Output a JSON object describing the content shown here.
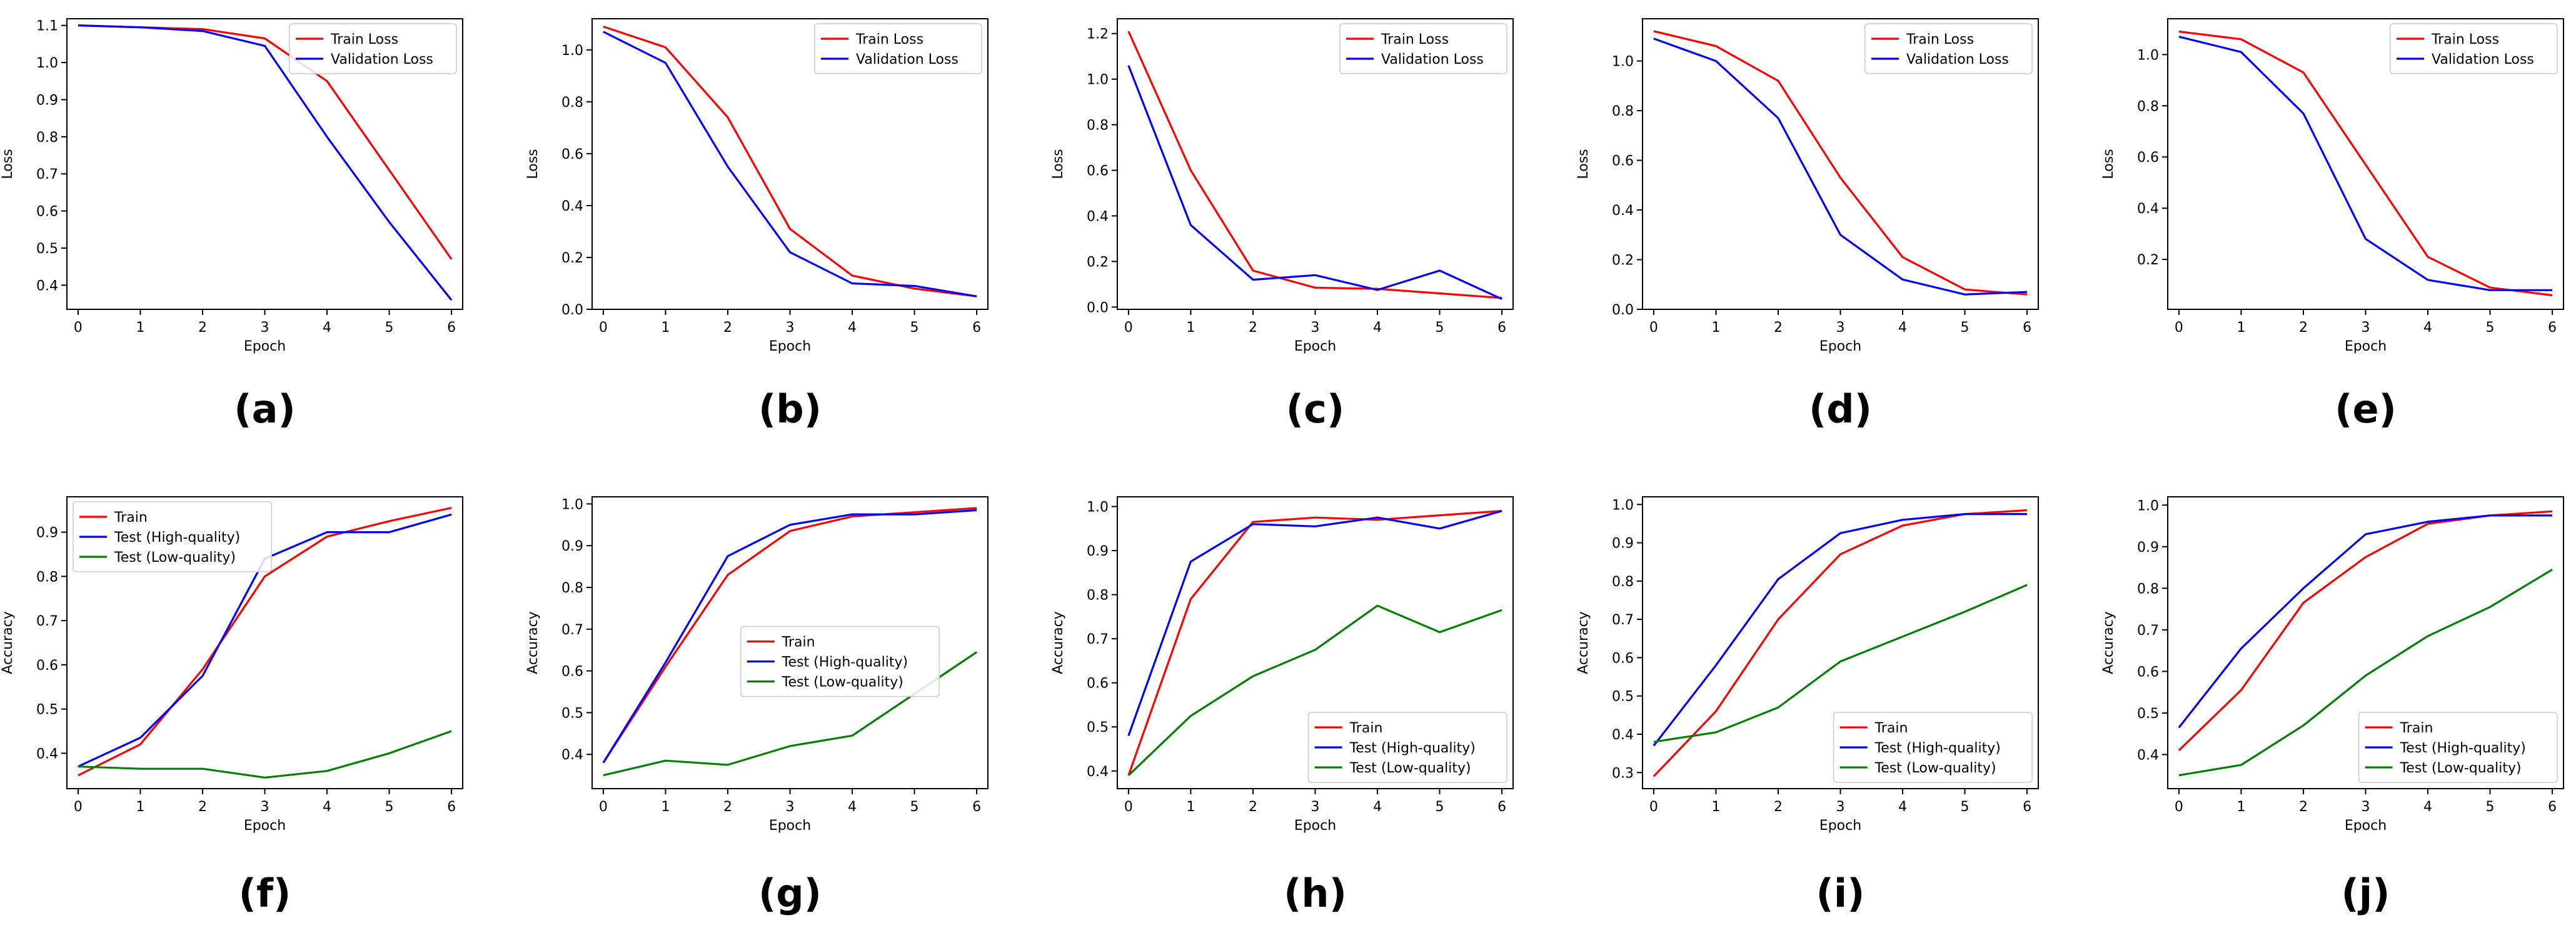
{
  "colors": {
    "train": "#ff0000",
    "validation": "#0000ff",
    "low_quality": "#008000",
    "axis": "#000000"
  },
  "chart_data": [
    {
      "id": "a",
      "type": "line",
      "caption": "(a)",
      "xlabel": "Epoch",
      "ylabel": "Loss",
      "x": [
        0,
        1,
        2,
        3,
        4,
        5,
        6
      ],
      "xlim": [
        -0.18,
        6.18
      ],
      "ylim": [
        0.335,
        1.118
      ],
      "yticks": [
        0.4,
        0.5,
        0.6,
        0.7,
        0.8,
        0.9,
        1.0,
        1.1
      ],
      "ytick_labels": [
        "0.4",
        "0.5",
        "0.6",
        "0.7",
        "0.8",
        "0.9",
        "1.0",
        "1.1"
      ],
      "legend_position": "top-right",
      "series": [
        {
          "name": "Train Loss",
          "color": "#ff0000",
          "values": [
            1.1,
            1.095,
            1.09,
            1.065,
            0.95,
            0.71,
            0.47
          ]
        },
        {
          "name": "Validation Loss",
          "color": "#0000ff",
          "values": [
            1.1,
            1.095,
            1.085,
            1.045,
            0.8,
            0.57,
            0.36
          ]
        }
      ]
    },
    {
      "id": "b",
      "type": "line",
      "caption": "(b)",
      "xlabel": "Epoch",
      "ylabel": "Loss",
      "x": [
        0,
        1,
        2,
        3,
        4,
        5,
        6
      ],
      "xlim": [
        -0.18,
        6.18
      ],
      "ylim": [
        0.0,
        1.12
      ],
      "yticks": [
        0.0,
        0.2,
        0.4,
        0.6,
        0.8,
        1.0
      ],
      "ytick_labels": [
        "0.0",
        "0.2",
        "0.4",
        "0.6",
        "0.8",
        "1.0"
      ],
      "legend_position": "top-right",
      "series": [
        {
          "name": "Train Loss",
          "color": "#ff0000",
          "values": [
            1.09,
            1.01,
            0.74,
            0.31,
            0.13,
            0.08,
            0.05
          ]
        },
        {
          "name": "Validation Loss",
          "color": "#0000ff",
          "values": [
            1.07,
            0.95,
            0.55,
            0.22,
            0.1,
            0.09,
            0.05
          ]
        }
      ]
    },
    {
      "id": "c",
      "type": "line",
      "caption": "(c)",
      "xlabel": "Epoch",
      "ylabel": "Loss",
      "x": [
        0,
        1,
        2,
        3,
        4,
        5,
        6
      ],
      "xlim": [
        -0.18,
        6.18
      ],
      "ylim": [
        -0.01,
        1.265
      ],
      "yticks": [
        0.0,
        0.2,
        0.4,
        0.6,
        0.8,
        1.0,
        1.2
      ],
      "ytick_labels": [
        "0.0",
        "0.2",
        "0.4",
        "0.6",
        "0.8",
        "1.0",
        "1.2"
      ],
      "legend_position": "top-right",
      "series": [
        {
          "name": "Train Loss",
          "color": "#ff0000",
          "values": [
            1.21,
            0.6,
            0.16,
            0.085,
            0.08,
            0.06,
            0.04
          ]
        },
        {
          "name": "Validation Loss",
          "color": "#0000ff",
          "values": [
            1.06,
            0.36,
            0.12,
            0.14,
            0.075,
            0.16,
            0.035
          ]
        }
      ]
    },
    {
      "id": "d",
      "type": "line",
      "caption": "(d)",
      "xlabel": "Epoch",
      "ylabel": "Loss",
      "x": [
        0,
        1,
        2,
        3,
        4,
        5,
        6
      ],
      "xlim": [
        -0.18,
        6.18
      ],
      "ylim": [
        0.0,
        1.17
      ],
      "yticks": [
        0.0,
        0.2,
        0.4,
        0.6,
        0.8,
        1.0
      ],
      "ytick_labels": [
        "0.0",
        "0.2",
        "0.4",
        "0.6",
        "0.8",
        "1.0"
      ],
      "legend_position": "top-right",
      "series": [
        {
          "name": "Train Loss",
          "color": "#ff0000",
          "values": [
            1.12,
            1.06,
            0.92,
            0.53,
            0.21,
            0.08,
            0.06
          ]
        },
        {
          "name": "Validation Loss",
          "color": "#0000ff",
          "values": [
            1.09,
            1.0,
            0.77,
            0.3,
            0.12,
            0.06,
            0.07
          ]
        }
      ]
    },
    {
      "id": "e",
      "type": "line",
      "caption": "(e)",
      "xlabel": "Epoch",
      "ylabel": "Loss",
      "x": [
        0,
        1,
        2,
        3,
        4,
        5,
        6
      ],
      "xlim": [
        -0.18,
        6.18
      ],
      "ylim": [
        0.005,
        1.14
      ],
      "yticks": [
        0.2,
        0.4,
        0.6,
        0.8,
        1.0
      ],
      "ytick_labels": [
        "0.2",
        "0.4",
        "0.6",
        "0.8",
        "1.0"
      ],
      "legend_position": "top-right",
      "series": [
        {
          "name": "Train Loss",
          "color": "#ff0000",
          "values": [
            1.09,
            1.06,
            0.93,
            0.57,
            0.21,
            0.09,
            0.06
          ]
        },
        {
          "name": "Validation Loss",
          "color": "#0000ff",
          "values": [
            1.07,
            1.01,
            0.77,
            0.28,
            0.12,
            0.08,
            0.08
          ]
        }
      ]
    },
    {
      "id": "f",
      "type": "line",
      "caption": "(f)",
      "xlabel": "Epoch",
      "ylabel": "Accuracy",
      "x": [
        0,
        1,
        2,
        3,
        4,
        5,
        6
      ],
      "xlim": [
        -0.18,
        6.18
      ],
      "ylim": [
        0.32,
        0.98
      ],
      "yticks": [
        0.4,
        0.5,
        0.6,
        0.7,
        0.8,
        0.9
      ],
      "ytick_labels": [
        "0.4",
        "0.5",
        "0.6",
        "0.7",
        "0.8",
        "0.9"
      ],
      "legend_position": "top-left",
      "series": [
        {
          "name": "Train",
          "color": "#ff0000",
          "values": [
            0.35,
            0.42,
            0.59,
            0.8,
            0.89,
            0.925,
            0.955
          ]
        },
        {
          "name": "Test (High-quality)",
          "color": "#0000ff",
          "values": [
            0.37,
            0.435,
            0.575,
            0.84,
            0.9,
            0.9,
            0.94
          ]
        },
        {
          "name": "Test (Low-quality)",
          "color": "#008000",
          "values": [
            0.37,
            0.365,
            0.365,
            0.345,
            0.36,
            0.4,
            0.45
          ]
        }
      ]
    },
    {
      "id": "g",
      "type": "line",
      "caption": "(g)",
      "xlabel": "Epoch",
      "ylabel": "Accuracy",
      "x": [
        0,
        1,
        2,
        3,
        4,
        5,
        6
      ],
      "xlim": [
        -0.18,
        6.18
      ],
      "ylim": [
        0.318,
        1.017
      ],
      "yticks": [
        0.4,
        0.5,
        0.6,
        0.7,
        0.8,
        0.9,
        1.0
      ],
      "ytick_labels": [
        "0.4",
        "0.5",
        "0.6",
        "0.7",
        "0.8",
        "0.9",
        "1.0"
      ],
      "legend_position": "center",
      "series": [
        {
          "name": "Train",
          "color": "#ff0000",
          "values": [
            0.38,
            0.61,
            0.83,
            0.935,
            0.97,
            0.98,
            0.99
          ]
        },
        {
          "name": "Test (High-quality)",
          "color": "#0000ff",
          "values": [
            0.38,
            0.62,
            0.875,
            0.95,
            0.975,
            0.975,
            0.985
          ]
        },
        {
          "name": "Test (Low-quality)",
          "color": "#008000",
          "values": [
            0.35,
            0.385,
            0.375,
            0.42,
            0.445,
            0.545,
            0.645
          ]
        }
      ]
    },
    {
      "id": "h",
      "type": "line",
      "caption": "(h)",
      "xlabel": "Epoch",
      "ylabel": "Accuracy",
      "x": [
        0,
        1,
        2,
        3,
        4,
        5,
        6
      ],
      "xlim": [
        -0.18,
        6.18
      ],
      "ylim": [
        0.36,
        1.022
      ],
      "yticks": [
        0.4,
        0.5,
        0.6,
        0.7,
        0.8,
        0.9,
        1.0
      ],
      "ytick_labels": [
        "0.4",
        "0.5",
        "0.6",
        "0.7",
        "0.8",
        "0.9",
        "1.0"
      ],
      "legend_position": "bottom-right",
      "series": [
        {
          "name": "Train",
          "color": "#ff0000",
          "values": [
            0.39,
            0.79,
            0.965,
            0.975,
            0.97,
            0.98,
            0.99
          ]
        },
        {
          "name": "Test (High-quality)",
          "color": "#0000ff",
          "values": [
            0.48,
            0.875,
            0.96,
            0.955,
            0.975,
            0.95,
            0.99
          ]
        },
        {
          "name": "Test (Low-quality)",
          "color": "#008000",
          "values": [
            0.39,
            0.525,
            0.615,
            0.675,
            0.775,
            0.715,
            0.765
          ]
        }
      ]
    },
    {
      "id": "i",
      "type": "line",
      "caption": "(i)",
      "xlabel": "Epoch",
      "ylabel": "Accuracy",
      "x": [
        0,
        1,
        2,
        3,
        4,
        5,
        6
      ],
      "xlim": [
        -0.18,
        6.18
      ],
      "ylim": [
        0.258,
        1.02
      ],
      "yticks": [
        0.3,
        0.4,
        0.5,
        0.6,
        0.7,
        0.8,
        0.9,
        1.0
      ],
      "ytick_labels": [
        "0.3",
        "0.4",
        "0.5",
        "0.6",
        "0.7",
        "0.8",
        "0.9",
        "1.0"
      ],
      "legend_position": "bottom-right",
      "series": [
        {
          "name": "Train",
          "color": "#ff0000",
          "values": [
            0.29,
            0.46,
            0.7,
            0.87,
            0.945,
            0.975,
            0.985
          ]
        },
        {
          "name": "Test (High-quality)",
          "color": "#0000ff",
          "values": [
            0.37,
            0.58,
            0.805,
            0.925,
            0.96,
            0.975,
            0.975
          ]
        },
        {
          "name": "Test (Low-quality)",
          "color": "#008000",
          "values": [
            0.38,
            0.405,
            0.47,
            0.59,
            0.655,
            0.72,
            0.79
          ]
        }
      ]
    },
    {
      "id": "j",
      "type": "line",
      "caption": "(j)",
      "xlabel": "Epoch",
      "ylabel": "Accuracy",
      "x": [
        0,
        1,
        2,
        3,
        4,
        5,
        6
      ],
      "xlim": [
        -0.18,
        6.18
      ],
      "ylim": [
        0.318,
        1.02
      ],
      "yticks": [
        0.4,
        0.5,
        0.6,
        0.7,
        0.8,
        0.9,
        1.0
      ],
      "ytick_labels": [
        "0.4",
        "0.5",
        "0.6",
        "0.7",
        "0.8",
        "0.9",
        "1.0"
      ],
      "legend_position": "bottom-right",
      "series": [
        {
          "name": "Train",
          "color": "#ff0000",
          "values": [
            0.41,
            0.555,
            0.765,
            0.875,
            0.955,
            0.975,
            0.985
          ]
        },
        {
          "name": "Test (High-quality)",
          "color": "#0000ff",
          "values": [
            0.465,
            0.655,
            0.8,
            0.93,
            0.96,
            0.975,
            0.975
          ]
        },
        {
          "name": "Test (Low-quality)",
          "color": "#008000",
          "values": [
            0.35,
            0.375,
            0.47,
            0.59,
            0.685,
            0.755,
            0.845
          ]
        }
      ]
    }
  ]
}
